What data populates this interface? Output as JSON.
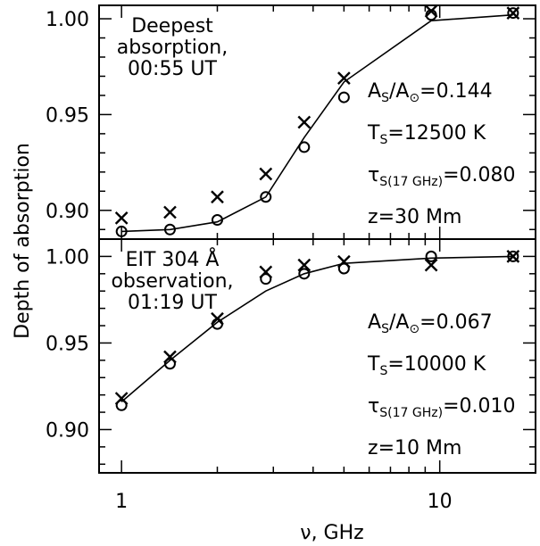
{
  "chart_data": {
    "type": "line",
    "x_axis": {
      "label": "ν, GHz",
      "scale": "log",
      "range": [
        0.85,
        20
      ],
      "tick_labels": [
        "1",
        "10"
      ],
      "tick_values": [
        1,
        10
      ]
    },
    "y_axis_label": "Depth of absorption",
    "panels": [
      {
        "id": "top",
        "ylim": [
          0.885,
          1.007
        ],
        "y_ticks": [
          0.9,
          0.95,
          1.0
        ],
        "y_tick_labels": [
          "0.90",
          "0.95",
          "1.00"
        ],
        "title_lines": [
          "Deepest",
          "absorption,",
          "00:55 UT"
        ],
        "params": [
          {
            "main": "A",
            "sub": "S",
            "mid": "/A",
            "sub2": "⊙",
            "tail": "=0.144"
          },
          {
            "main": "T",
            "sub": "S",
            "mid": "",
            "sub2": "",
            "tail": "=12500 K"
          },
          {
            "main": "τ",
            "sub": "S(17 GHz)",
            "mid": "",
            "sub2": "",
            "tail": "=0.080"
          },
          {
            "main": "z",
            "sub": "",
            "mid": "",
            "sub2": "",
            "tail": "=30 Mm"
          }
        ],
        "series": [
          {
            "marker": "o",
            "x": [
              1.0,
              1.42,
              2.0,
              2.84,
              3.75,
              5.0,
              9.4,
              17.0
            ],
            "y": [
              0.889,
              0.89,
              0.895,
              0.907,
              0.933,
              0.959,
              1.002,
              1.003
            ]
          },
          {
            "marker": "x",
            "x": [
              1.0,
              1.42,
              2.0,
              2.84,
              3.75,
              5.0,
              9.4,
              17.0
            ],
            "y": [
              0.896,
              0.899,
              0.907,
              0.919,
              0.946,
              0.969,
              1.004,
              1.003
            ]
          },
          {
            "marker": "line",
            "x": [
              1.0,
              1.42,
              2.0,
              2.84,
              3.75,
              5.0,
              9.4,
              17.0
            ],
            "y": [
              0.889,
              0.89,
              0.894,
              0.907,
              0.938,
              0.967,
              0.999,
              1.002
            ]
          }
        ]
      },
      {
        "id": "bottom",
        "ylim": [
          0.875,
          1.01
        ],
        "y_ticks": [
          0.9,
          0.95,
          1.0
        ],
        "y_tick_labels": [
          "0.90",
          "0.95",
          "1.00"
        ],
        "title_lines": [
          "EIT 304 Å",
          "observation,",
          "01:19 UT"
        ],
        "params": [
          {
            "main": "A",
            "sub": "S",
            "mid": "/A",
            "sub2": "⊙",
            "tail": "=0.067"
          },
          {
            "main": "T",
            "sub": "S",
            "mid": "",
            "sub2": "",
            "tail": "=10000 K"
          },
          {
            "main": "τ",
            "sub": "S(17 GHz)",
            "mid": "",
            "sub2": "",
            "tail": "=0.010"
          },
          {
            "main": "z",
            "sub": "",
            "mid": "",
            "sub2": "",
            "tail": "=10 Mm"
          }
        ],
        "series": [
          {
            "marker": "o",
            "x": [
              1.0,
              1.42,
              2.0,
              2.84,
              3.75,
              5.0,
              9.4,
              17.0
            ],
            "y": [
              0.914,
              0.938,
              0.961,
              0.987,
              0.99,
              0.993,
              1.0,
              1.0
            ]
          },
          {
            "marker": "x",
            "x": [
              1.0,
              1.42,
              2.0,
              2.84,
              3.75,
              5.0,
              9.4,
              17.0
            ],
            "y": [
              0.918,
              0.942,
              0.964,
              0.991,
              0.995,
              0.997,
              0.995,
              1.0
            ]
          },
          {
            "marker": "line",
            "x": [
              1.0,
              1.42,
              2.0,
              2.84,
              3.75,
              5.0,
              9.4,
              17.0
            ],
            "y": [
              0.916,
              0.94,
              0.962,
              0.98,
              0.99,
              0.996,
              0.999,
              1.0
            ]
          }
        ]
      }
    ]
  }
}
